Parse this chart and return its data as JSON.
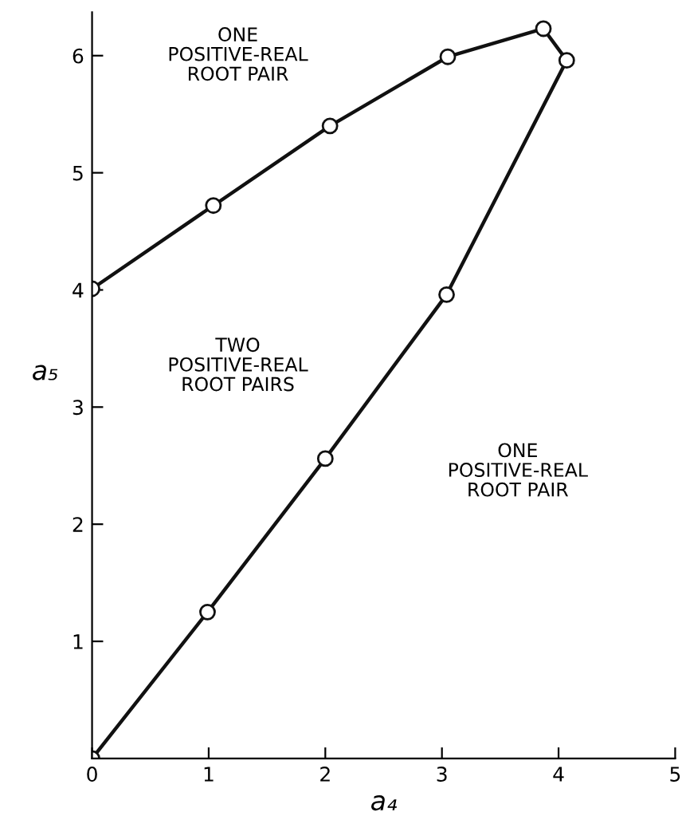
{
  "chart_data": {
    "type": "line",
    "xlabel": "a₄",
    "ylabel": "a₅",
    "x": [
      0,
      0.99,
      2.0,
      3.04,
      4.07,
      3.87,
      3.05,
      2.04,
      1.04,
      0
    ],
    "series": [
      {
        "color": "#111111",
        "values": [
          0,
          1.25,
          2.56,
          3.96,
          5.96,
          6.23,
          5.99,
          5.4,
          4.72,
          4.01
        ]
      }
    ],
    "xlim": [
      0,
      5
    ],
    "ylim": [
      0,
      6.37
    ],
    "xticks": [
      0,
      1,
      2,
      3,
      4,
      5
    ],
    "yticks": [
      1,
      2,
      3,
      4,
      5,
      6
    ],
    "marker": "circle",
    "line_style": "solid",
    "grid": false,
    "annotations": [
      "ONE\nPOSITIVE-REAL\nROOT PAIR",
      "TWO\nPOSITIVE-REAL\nROOT PAIRS",
      "ONE\nPOSITIVE-REAL\nROOT PAIR"
    ]
  }
}
